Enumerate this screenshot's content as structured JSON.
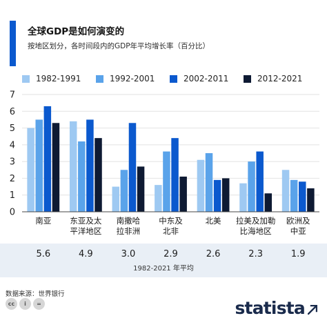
{
  "header": {
    "title": "全球GDP是如何演变的",
    "subtitle": "按地区划分，各时间段内的GDP年平均增长率（百分比）"
  },
  "colors": {
    "accent": "#0b59ce",
    "series": [
      "#9ec9f2",
      "#5aa3ea",
      "#0b59ce",
      "#0e1a33"
    ]
  },
  "chart_data": {
    "type": "bar",
    "categories": [
      "南亚",
      "东亚及太平洋地区",
      "南撒哈拉非洲",
      "中东及北非",
      "北美",
      "拉美及加勒比海地区",
      "欧洲及中亚"
    ],
    "category_lines": [
      [
        "南亚"
      ],
      [
        "东亚及太",
        "平洋地区"
      ],
      [
        "南撒哈",
        "拉非洲"
      ],
      [
        "中东及",
        "北非"
      ],
      [
        "北美"
      ],
      [
        "拉美及加勒",
        "比海地区"
      ],
      [
        "欧洲及",
        "中亚"
      ]
    ],
    "series": [
      {
        "name": "1982-1991",
        "values": [
          5.0,
          5.4,
          1.5,
          1.6,
          3.1,
          1.7,
          2.5
        ]
      },
      {
        "name": "1992-2001",
        "values": [
          5.5,
          4.2,
          2.5,
          3.6,
          3.5,
          3.0,
          1.9
        ]
      },
      {
        "name": "2002-2011",
        "values": [
          6.3,
          5.5,
          5.3,
          4.4,
          1.9,
          3.6,
          1.8
        ]
      },
      {
        "name": "2012-2021",
        "values": [
          5.3,
          4.4,
          2.7,
          2.1,
          2.0,
          1.1,
          1.4
        ]
      }
    ],
    "ylim": [
      0,
      7
    ],
    "yticks": [
      0,
      1,
      2,
      3,
      4,
      5,
      6,
      7
    ],
    "grid": true,
    "legend_position": "top",
    "averages": [
      "5.6",
      "4.9",
      "3.0",
      "2.9",
      "2.6",
      "2.3",
      "1.9"
    ],
    "averages_label": "1982-2021 年平均"
  },
  "footer": {
    "source": "数据来源：世界银行",
    "brand": "statista"
  }
}
